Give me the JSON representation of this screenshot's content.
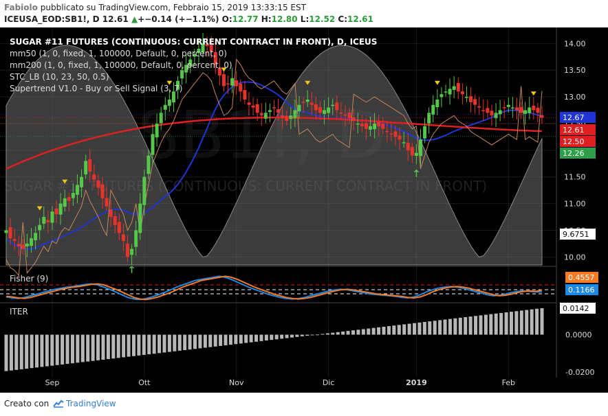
{
  "header": {
    "author": "Fabiolo",
    "published": "pubblicato su TradingView.com, Febbraio 15, 2019 13:33:15 EST",
    "symbol": "ICEUSA_EOD:SB1!, D",
    "last": "12.61",
    "change_arrow": "▲",
    "change": "+−0.14 (+−1.1%)",
    "o_label": "O:",
    "o": "12.77",
    "h_label": "H:",
    "h": "12.80",
    "l_label": "L:",
    "l": "12.52",
    "c_label": "C:",
    "c": "12.61"
  },
  "legend": {
    "title": "SUGAR #11 FUTURES (CONTINUOUS: CURRENT CONTRACT IN FRONT), D, ICEUS",
    "mm50": "mm50 (1, 0, fixed, 1, 100000, Default, 0, percent, 0)",
    "mm200": "mm200 (1, 0, fixed, 1, 100000, Default, 0, percent, 0)",
    "stc": "STC_LB (10, 23, 50, 0.5)",
    "supertrend": "Supertrend V1.0 - Buy or Sell Signal (3, 7)"
  },
  "watermark": {
    "symbol": "SB1!, D",
    "name": "SUGAR #11 FUTURES (CONTINUOUS: CURRENT CONTRACT IN FRONT)"
  },
  "chart_data": [
    {
      "type": "candlestick",
      "title": "SUGAR #11 FUTURES (CONTINUOUS: CURRENT CONTRACT IN FRONT), D, ICEUS",
      "ylim": [
        9.85,
        14.3
      ],
      "yticks": [
        "14.00",
        "13.50",
        "13.00",
        "12.50",
        "12.00",
        "11.50",
        "11.00",
        "10.50",
        "10.00"
      ],
      "ytick_values": [
        14.0,
        13.5,
        13.0,
        12.5,
        12.0,
        11.5,
        11.0,
        10.5,
        10.0
      ],
      "price_labels": [
        {
          "text": "12.67",
          "value": 12.67,
          "color": "#1f35d6"
        },
        {
          "text": "12.61",
          "value": 12.61,
          "color": "#e02020"
        },
        {
          "text": "12.50",
          "value": 12.5,
          "color": "#e02020"
        },
        {
          "text": "12.26",
          "value": 12.26,
          "color": "#2e9e4a"
        },
        {
          "text": "9.6751",
          "value": 9.6751,
          "color": "#ffffff"
        }
      ],
      "x_labels": [
        "Sep",
        "Ott",
        "Nov",
        "Dic",
        "2019",
        "Feb"
      ],
      "x_label_bars": [
        11,
        33,
        55,
        77,
        98,
        120
      ],
      "closes": [
        10.5,
        10.35,
        10.3,
        10.2,
        10.15,
        10.25,
        10.35,
        10.45,
        10.6,
        10.75,
        10.65,
        10.85,
        10.8,
        11.0,
        11.1,
        11.05,
        11.2,
        11.35,
        11.5,
        11.8,
        11.6,
        11.45,
        11.3,
        11.1,
        10.95,
        10.75,
        10.6,
        10.45,
        10.3,
        10.0,
        10.15,
        10.5,
        11.0,
        11.5,
        11.9,
        12.3,
        12.5,
        12.7,
        12.85,
        12.95,
        13.1,
        13.3,
        13.5,
        13.6,
        13.7,
        13.8,
        13.9,
        14.0,
        13.95,
        13.85,
        13.6,
        13.4,
        13.2,
        13.25,
        13.35,
        13.2,
        13.1,
        12.95,
        12.85,
        12.8,
        12.7,
        12.65,
        12.7,
        12.75,
        12.8,
        12.7,
        12.6,
        12.55,
        12.65,
        12.75,
        12.85,
        12.9,
        12.95,
        12.85,
        12.75,
        12.7,
        12.75,
        12.8,
        12.85,
        12.75,
        12.7,
        12.65,
        12.6,
        12.55,
        12.5,
        12.45,
        12.4,
        12.45,
        12.5,
        12.45,
        12.4,
        12.35,
        12.3,
        12.25,
        12.2,
        12.15,
        12.0,
        11.9,
        11.95,
        12.2,
        12.45,
        12.7,
        12.85,
        12.95,
        13.05,
        13.1,
        13.15,
        13.2,
        13.1,
        13.05,
        13.0,
        12.9,
        12.85,
        12.8,
        12.75,
        12.7,
        12.65,
        12.7,
        12.75,
        12.8,
        12.85,
        12.8,
        12.75,
        12.7,
        12.75,
        12.8,
        12.75,
        12.7,
        12.61
      ]
    },
    {
      "type": "line",
      "title": "Fisher (9)",
      "value_labels": [
        {
          "text": "0.4557",
          "color": "#f57c24"
        },
        {
          "text": "0.1166",
          "color": "#1e88e5"
        }
      ],
      "series": [
        {
          "name": "Fisher",
          "color": "#1e88e5",
          "values": [
            -0.8,
            -1.0,
            -1.1,
            -0.9,
            -0.6,
            -0.3,
            0.0,
            0.3,
            0.6,
            0.8,
            1.0,
            1.1,
            1.3,
            1.5,
            1.6,
            1.4,
            1.0,
            0.6,
            0.1,
            -0.4,
            -0.9,
            -1.2,
            -1.3,
            -1.1,
            -0.8,
            -0.4,
            0.0,
            0.5,
            1.0,
            1.4,
            1.8,
            2.2,
            2.4,
            2.6,
            2.8,
            3.0,
            2.8,
            2.4,
            1.9,
            1.4,
            0.9,
            0.5,
            0.1,
            -0.3,
            -0.6,
            -0.9,
            -1.1,
            -1.2,
            -1.1,
            -0.9,
            -0.6,
            -0.3,
            0.0,
            0.3,
            0.5,
            0.6,
            0.5,
            0.3,
            0.1,
            -0.1,
            -0.3,
            -0.4,
            -0.5,
            -0.6,
            -0.7,
            -0.9,
            -1.0,
            -0.8,
            -0.4,
            0.1,
            0.5,
            0.8,
            1.0,
            1.1,
            1.0,
            0.8,
            0.5,
            0.2,
            -0.1,
            -0.4,
            -0.6,
            -0.5,
            -0.3,
            0.0,
            0.2,
            0.3,
            0.2,
            0.1,
            0.12
          ]
        },
        {
          "name": "Trigger",
          "color": "#f57c24",
          "values": [
            -0.7,
            -0.8,
            -1.0,
            -1.1,
            -0.9,
            -0.6,
            -0.3,
            0.0,
            0.3,
            0.6,
            0.8,
            1.0,
            1.1,
            1.3,
            1.5,
            1.6,
            1.4,
            1.0,
            0.6,
            0.1,
            -0.4,
            -0.9,
            -1.2,
            -1.3,
            -1.1,
            -0.8,
            -0.4,
            0.0,
            0.5,
            1.0,
            1.4,
            1.8,
            2.2,
            2.4,
            2.6,
            2.8,
            3.0,
            2.8,
            2.4,
            1.9,
            1.4,
            0.9,
            0.5,
            0.1,
            -0.3,
            -0.6,
            -0.9,
            -1.1,
            -1.2,
            -1.1,
            -0.9,
            -0.6,
            -0.3,
            0.0,
            0.3,
            0.5,
            0.6,
            0.5,
            0.3,
            0.1,
            -0.1,
            -0.3,
            -0.4,
            -0.5,
            -0.6,
            -0.7,
            -0.9,
            -1.0,
            -0.8,
            -0.4,
            0.1,
            0.5,
            0.8,
            1.0,
            1.1,
            1.0,
            0.8,
            0.5,
            0.2,
            -0.1,
            -0.4,
            -0.6,
            -0.5,
            -0.3,
            0.0,
            0.2,
            0.3,
            0.2,
            0.46
          ]
        }
      ]
    },
    {
      "type": "bar",
      "title": "ITER",
      "yticks": [
        "0.0142",
        "0.0000",
        "-0.0200"
      ],
      "ytick_values": [
        0.0142,
        0.0,
        -0.02
      ],
      "ylim": [
        -0.0215,
        0.016
      ],
      "start": -0.0195,
      "end": 0.0142,
      "count": 106
    }
  ],
  "footer": {
    "created_with": "Creato con",
    "brand": "TradingView"
  }
}
